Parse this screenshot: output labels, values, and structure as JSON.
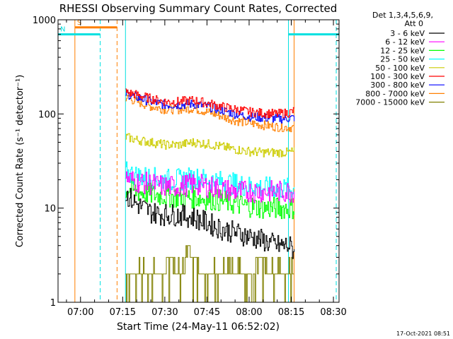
{
  "chart_data": {
    "type": "line",
    "title": "RHESSI Observing Summary Count Rates, Corrected",
    "xlabel": "Start Time (24-May-11 06:52:02)",
    "ylabel": "Corrected Count Rate (s⁻¹ detector⁻¹)",
    "yscale": "log",
    "ylim": [
      1,
      1000
    ],
    "xlim_minutes_of_day": [
      412,
      512
    ],
    "x_ticks": [
      {
        "label": "07:00",
        "t": 420
      },
      {
        "label": "07:15",
        "t": 435
      },
      {
        "label": "07:30",
        "t": 450
      },
      {
        "label": "07:45",
        "t": 465
      },
      {
        "label": "08:00",
        "t": 480
      },
      {
        "label": "08:15",
        "t": 495
      },
      {
        "label": "08:30",
        "t": 510
      }
    ],
    "y_ticks": [
      {
        "label": "1",
        "v": 1
      },
      {
        "label": "10",
        "v": 10
      },
      {
        "label": "100",
        "v": 100
      },
      {
        "label": "1000",
        "v": 1000
      }
    ],
    "legend_header": [
      "Det 1,3,4,5,6,9,",
      "Att 0"
    ],
    "data_start": 436,
    "data_end": 496,
    "series": [
      {
        "name": "3 - 6 keV",
        "color": "#000000",
        "x": [
          436,
          440,
          445,
          450,
          455,
          460,
          465,
          470,
          475,
          480,
          485,
          490,
          494,
          496
        ],
        "y": [
          14,
          11,
          9,
          8.5,
          8.5,
          8,
          7,
          6,
          5.5,
          5,
          4.5,
          4,
          4,
          3.5
        ]
      },
      {
        "name": "6 - 12 keV",
        "color": "#ff00ff",
        "x": [
          436,
          440,
          445,
          450,
          455,
          460,
          465,
          470,
          475,
          480,
          485,
          490,
          494,
          496
        ],
        "y": [
          21,
          19,
          18,
          17,
          17,
          18,
          17,
          16,
          15,
          15,
          15,
          15,
          15,
          15
        ]
      },
      {
        "name": "12 - 25 keV",
        "color": "#00ff00",
        "x": [
          436,
          440,
          445,
          450,
          455,
          460,
          465,
          470,
          475,
          480,
          485,
          490,
          494,
          496
        ],
        "y": [
          16,
          15,
          14,
          13.5,
          13,
          13,
          12.5,
          12,
          11,
          10.5,
          10,
          10,
          10,
          10
        ]
      },
      {
        "name": "25 - 50 keV",
        "color": "#00ffff",
        "x": [
          436,
          440,
          445,
          450,
          455,
          460,
          465,
          470,
          475,
          480,
          485,
          490,
          494,
          496
        ],
        "y": [
          24,
          22,
          21,
          20,
          20,
          21,
          20,
          19,
          18,
          17,
          16.5,
          16,
          16,
          16
        ]
      },
      {
        "name": "50 - 100 keV",
        "color": "#cccc00",
        "x": [
          436,
          440,
          445,
          450,
          455,
          460,
          465,
          470,
          475,
          480,
          485,
          490,
          494,
          496
        ],
        "y": [
          57,
          53,
          50,
          47,
          47,
          50,
          48,
          45,
          42,
          40,
          39,
          39,
          39,
          40
        ]
      },
      {
        "name": "100 - 300 keV",
        "color": "#ff0000",
        "x": [
          436,
          440,
          445,
          450,
          455,
          460,
          465,
          470,
          475,
          480,
          485,
          490,
          494,
          496
        ],
        "y": [
          170,
          160,
          145,
          135,
          135,
          140,
          130,
          120,
          112,
          105,
          102,
          100,
          103,
          108
        ]
      },
      {
        "name": "300 - 800 keV",
        "color": "#0000ff",
        "x": [
          436,
          440,
          445,
          450,
          455,
          460,
          465,
          470,
          475,
          480,
          485,
          490,
          494,
          496
        ],
        "y": [
          165,
          150,
          135,
          125,
          125,
          128,
          120,
          110,
          100,
          94,
          91,
          89,
          90,
          91
        ]
      },
      {
        "name": "800 - 7000 keV",
        "color": "#ff8000",
        "x": [
          436,
          440,
          445,
          450,
          455,
          460,
          465,
          470,
          475,
          480,
          485,
          490,
          494,
          496
        ],
        "y": [
          150,
          135,
          120,
          112,
          112,
          115,
          105,
          95,
          85,
          80,
          76,
          73,
          72,
          72
        ]
      },
      {
        "name": "7000 - 15000 keV",
        "color": "#808000",
        "x": [
          436,
          444,
          446,
          448,
          452,
          455,
          458,
          460,
          464,
          468,
          471,
          476,
          480,
          484,
          488,
          492,
          496
        ],
        "y": [
          2,
          2,
          3,
          2,
          3,
          2,
          4,
          3,
          2,
          1.5,
          2,
          2,
          2,
          3,
          2,
          2,
          2
        ]
      }
    ],
    "flag_bars": [
      {
        "label": "S",
        "color": "#ff8000",
        "x_start": 418,
        "x_end": 433,
        "y": 830
      },
      {
        "label": "N",
        "color": "#00e0e0",
        "x_start": 412,
        "x_end": 427,
        "y": 700
      },
      {
        "label": "",
        "color": "#00e0e0",
        "x_start": 494,
        "x_end": 512,
        "y": 700
      }
    ],
    "time_markers": [
      {
        "color": "#ff8000",
        "style": "solid",
        "t": 418
      },
      {
        "color": "#00e0e0",
        "style": "dashed",
        "t": 427
      },
      {
        "color": "#ff8000",
        "style": "dashed",
        "t": 433
      },
      {
        "color": "#00e0e0",
        "style": "solid",
        "t": 436
      },
      {
        "color": "#00e0e0",
        "style": "solid",
        "t": 494
      },
      {
        "color": "#ff8000",
        "style": "solid",
        "t": 496
      },
      {
        "color": "#00e0e0",
        "style": "dashed",
        "t": 511
      }
    ],
    "timestamp": "17-Oct-2021 08:51"
  }
}
